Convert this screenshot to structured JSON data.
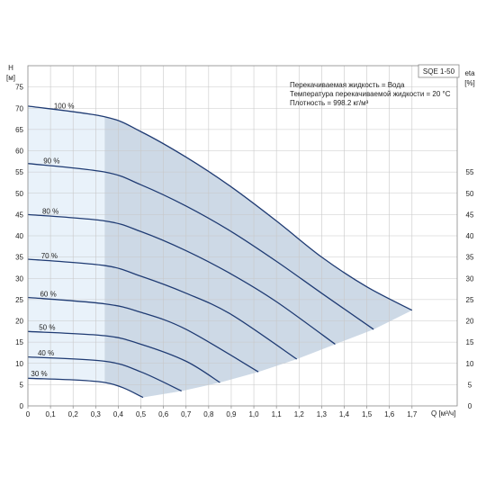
{
  "chart_data": {
    "type": "line",
    "title": "SQE 1-50",
    "info_lines": [
      "Перекачиваемая жидкость = Вода",
      "Температура перекачиваемой жидкости = 20 °C",
      "Плотность = 998.2 кг/м³"
    ],
    "y_left_label": [
      "H",
      "[м]"
    ],
    "y_right_label": [
      "eta",
      "[%]"
    ],
    "x_label": "Q [м³/ч]",
    "xlim": [
      0,
      1.9
    ],
    "ylim": [
      0,
      80
    ],
    "x_ticks": [
      "0",
      "0,1",
      "0,2",
      "0,3",
      "0,4",
      "0,5",
      "0,6",
      "0,7",
      "0,8",
      "0,9",
      "1,0",
      "1,1",
      "1,2",
      "1,3",
      "1,4",
      "1,5",
      "1,6",
      "1,7"
    ],
    "x_tick_values": [
      0,
      0.1,
      0.2,
      0.3,
      0.4,
      0.5,
      0.6,
      0.7,
      0.8,
      0.9,
      1.0,
      1.1,
      1.2,
      1.3,
      1.4,
      1.5,
      1.6,
      1.7
    ],
    "y_left_ticks": [
      0,
      5,
      10,
      15,
      20,
      25,
      30,
      35,
      40,
      45,
      50,
      55,
      60,
      65,
      70,
      75
    ],
    "y_right_ticks": [
      0,
      5,
      10,
      15,
      20,
      25,
      30,
      35,
      40,
      45,
      50,
      55
    ],
    "grid": true,
    "recommended_range_q": [
      0.34,
      1.7
    ],
    "colors": {
      "curve": "#1f3b73",
      "region_full": "#e9f2fa",
      "region_recommended": "#cdd9e6",
      "grid": "#c8c8c8",
      "frame": "#888888",
      "text": "#222222"
    },
    "series": [
      {
        "name": "100 %",
        "label": "100 %",
        "x": [
          0,
          0.34,
          0.5,
          0.7,
          0.9,
          1.1,
          1.3,
          1.5,
          1.7
        ],
        "y": [
          70.5,
          68,
          64.5,
          58.5,
          51.5,
          43.5,
          35,
          28,
          22.5
        ]
      },
      {
        "name": "90 %",
        "label": "90 %",
        "x": [
          0,
          0.34,
          0.5,
          0.7,
          0.9,
          1.1,
          1.3,
          1.53
        ],
        "y": [
          57,
          55,
          52,
          47,
          41,
          34,
          26.5,
          18
        ]
      },
      {
        "name": "80 %",
        "label": "80 %",
        "x": [
          0,
          0.34,
          0.5,
          0.7,
          0.9,
          1.1,
          1.36
        ],
        "y": [
          45,
          43.5,
          41,
          36.5,
          31,
          24.5,
          14.5
        ]
      },
      {
        "name": "70 %",
        "label": "70 %",
        "x": [
          0,
          0.34,
          0.5,
          0.7,
          0.9,
          1.19
        ],
        "y": [
          34.5,
          33,
          30.5,
          26.5,
          21.5,
          11
        ]
      },
      {
        "name": "60 %",
        "label": "60 %",
        "x": [
          0,
          0.34,
          0.5,
          0.7,
          1.02
        ],
        "y": [
          25.5,
          24,
          22,
          18,
          8
        ]
      },
      {
        "name": "50 %",
        "label": "50 %",
        "x": [
          0,
          0.34,
          0.5,
          0.7,
          0.85
        ],
        "y": [
          17.5,
          16.5,
          14.5,
          10.5,
          5.5
        ]
      },
      {
        "name": "40 %",
        "label": "40 %",
        "x": [
          0,
          0.34,
          0.5,
          0.68
        ],
        "y": [
          11.5,
          10.5,
          8,
          3.5
        ]
      },
      {
        "name": "30 %",
        "label": "30 %",
        "x": [
          0,
          0.34,
          0.51
        ],
        "y": [
          6.5,
          5.5,
          2
        ]
      }
    ]
  }
}
